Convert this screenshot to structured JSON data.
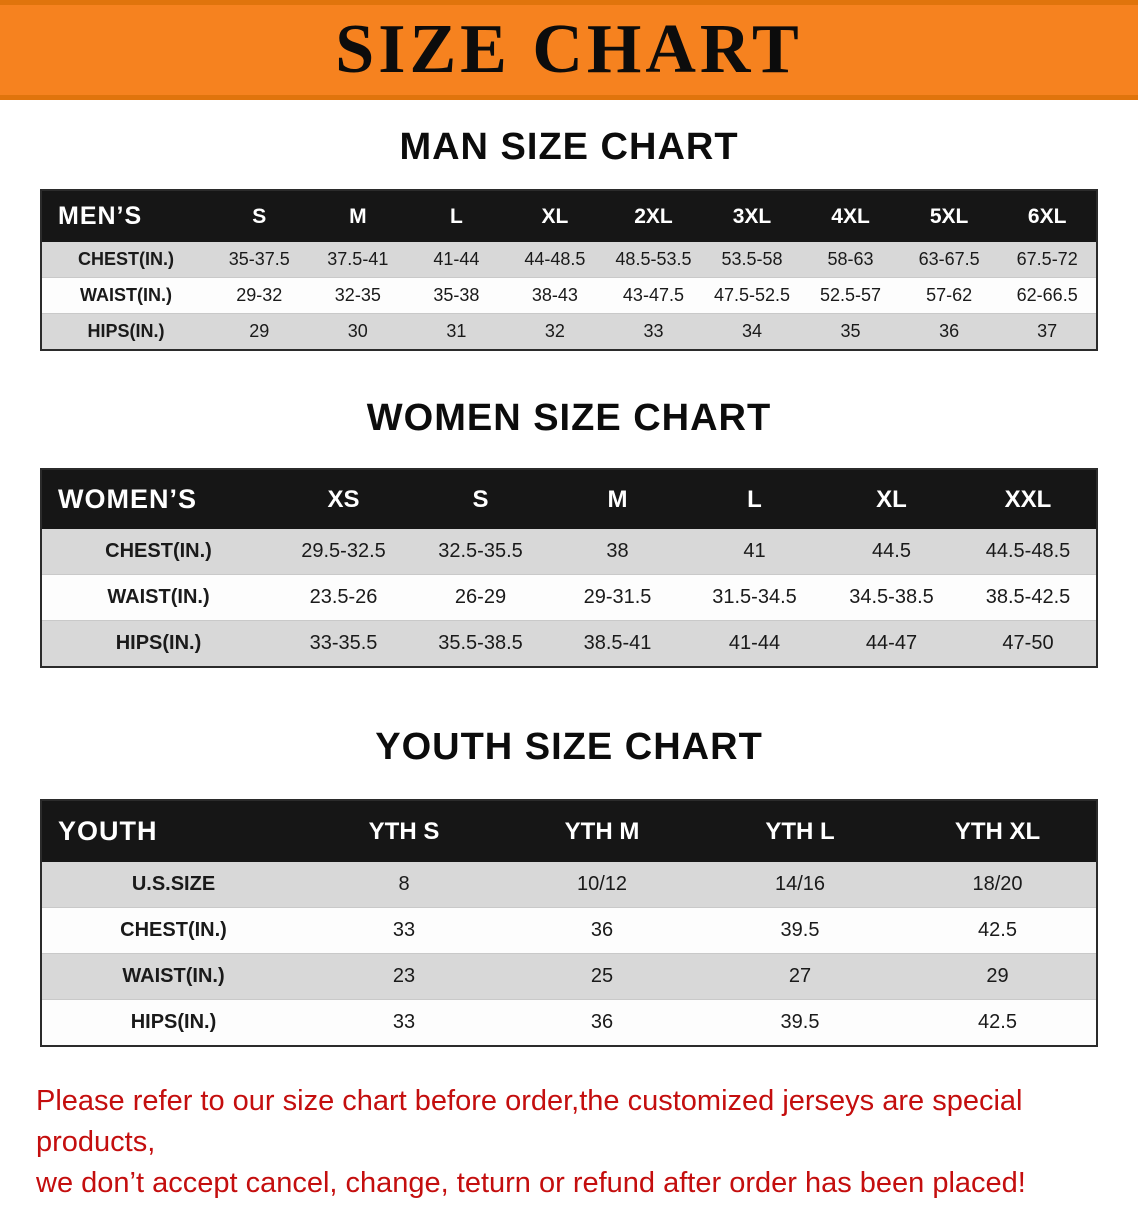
{
  "banner": {
    "title": "SIZE CHART",
    "background_color": "#F6821F"
  },
  "colors": {
    "banner_orange": "#F6821F",
    "table_header_black": "#161616",
    "row_stripe_gray": "#D8D8D8",
    "footer_red": "#C40E0E"
  },
  "chart_data": [
    {
      "type": "table",
      "title": "MAN SIZE CHART",
      "columns": [
        "MEN’S",
        "S",
        "M",
        "L",
        "XL",
        "2XL",
        "3XL",
        "4XL",
        "5XL",
        "6XL"
      ],
      "rows": [
        [
          "CHEST(IN.)",
          "35-37.5",
          "37.5-41",
          "41-44",
          "44-48.5",
          "48.5-53.5",
          "53.5-58",
          "58-63",
          "63-67.5",
          "67.5-72"
        ],
        [
          "WAIST(IN.)",
          "29-32",
          "32-35",
          "35-38",
          "38-43",
          "43-47.5",
          "47.5-52.5",
          "52.5-57",
          "57-62",
          "62-66.5"
        ],
        [
          "HIPS(IN.)",
          "29",
          "30",
          "31",
          "32",
          "33",
          "34",
          "35",
          "36",
          "37"
        ]
      ]
    },
    {
      "type": "table",
      "title": "WOMEN SIZE CHART",
      "columns": [
        "WOMEN’S",
        "XS",
        "S",
        "M",
        "L",
        "XL",
        "XXL"
      ],
      "rows": [
        [
          "CHEST(IN.)",
          "29.5-32.5",
          "32.5-35.5",
          "38",
          "41",
          "44.5",
          "44.5-48.5"
        ],
        [
          "WAIST(IN.)",
          "23.5-26",
          "26-29",
          "29-31.5",
          "31.5-34.5",
          "34.5-38.5",
          "38.5-42.5"
        ],
        [
          "HIPS(IN.)",
          "33-35.5",
          "35.5-38.5",
          "38.5-41",
          "41-44",
          "44-47",
          "47-50"
        ]
      ]
    },
    {
      "type": "table",
      "title": "YOUTH SIZE CHART",
      "columns": [
        "YOUTH",
        "YTH S",
        "YTH M",
        "YTH L",
        "YTH XL"
      ],
      "rows": [
        [
          "U.S.SIZE",
          "8",
          "10/12",
          "14/16",
          "18/20"
        ],
        [
          "CHEST(IN.)",
          "33",
          "36",
          "39.5",
          "42.5"
        ],
        [
          "WAIST(IN.)",
          "23",
          "25",
          "27",
          "29"
        ],
        [
          "HIPS(IN.)",
          "33",
          "36",
          "39.5",
          "42.5"
        ]
      ]
    }
  ],
  "footer": {
    "line1": "Please refer to our size chart before order,the customized jerseys are special products,",
    "line2": "we don’t accept cancel, change, teturn or refund after order has been placed!"
  }
}
